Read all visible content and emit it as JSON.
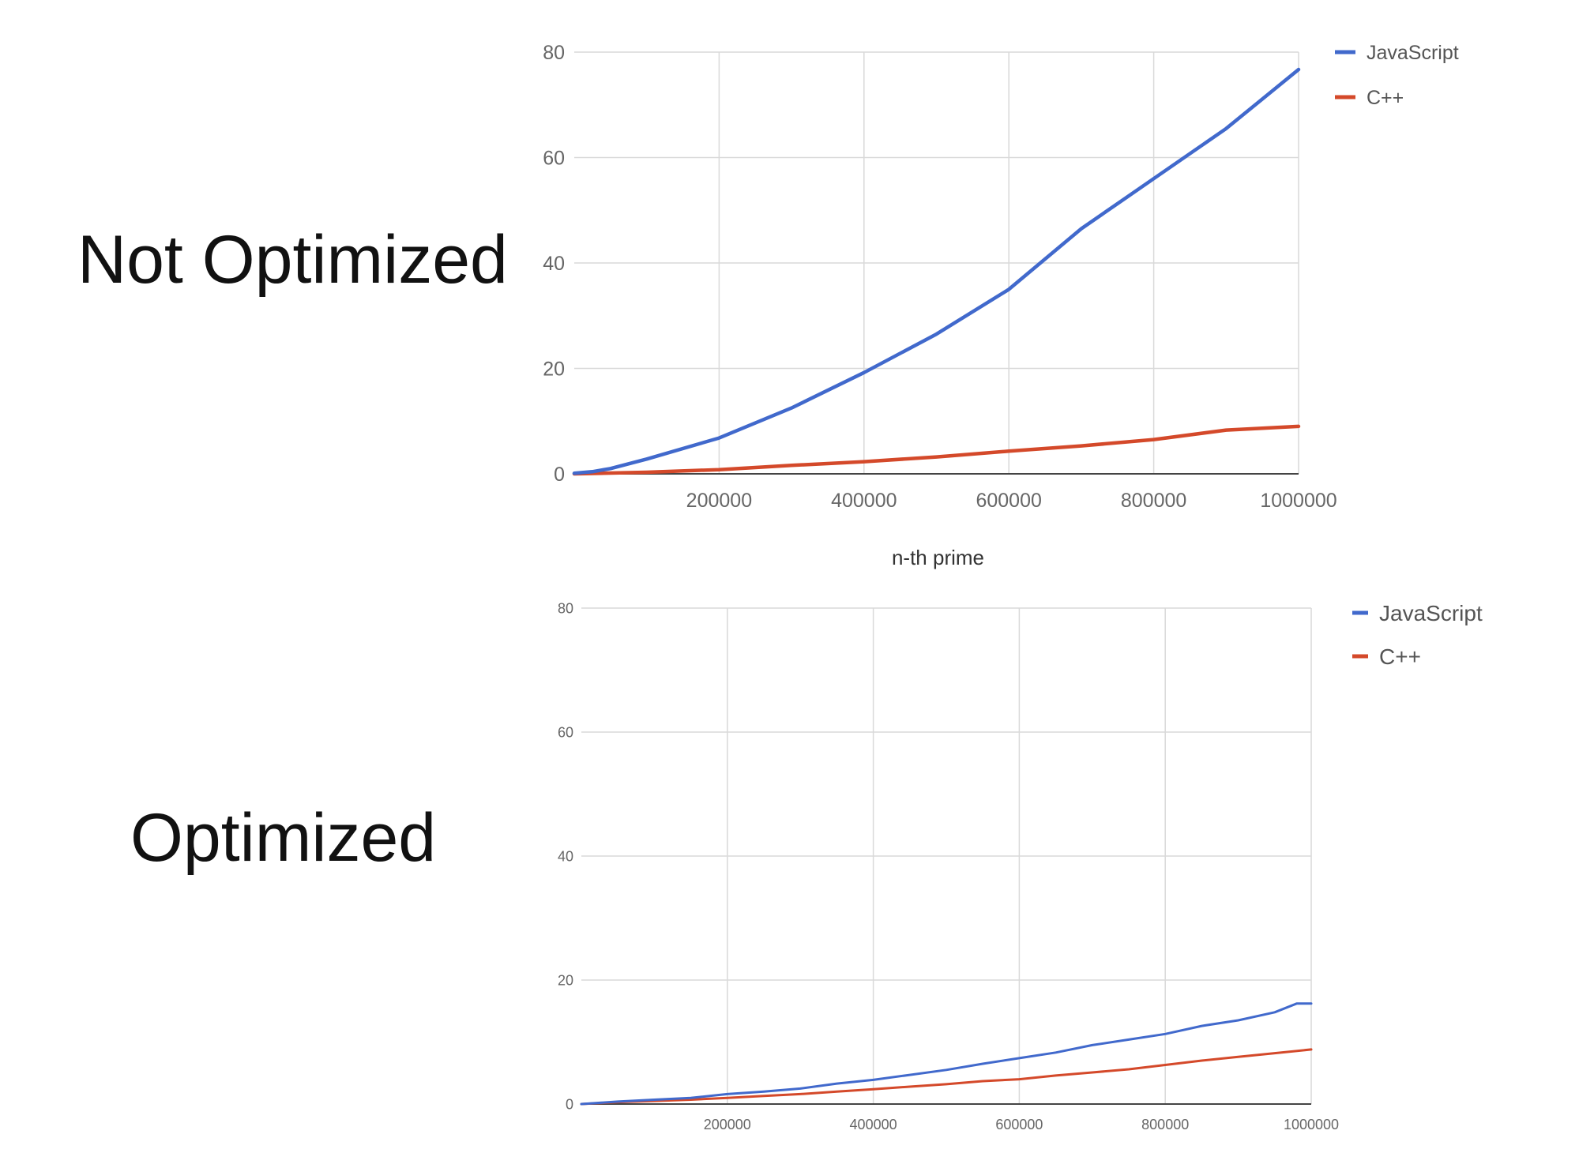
{
  "labels": {
    "top": "Not Optimized",
    "bottom": "Optimized"
  },
  "colors": {
    "javascript": "#4169cc",
    "cpp": "#d4492a",
    "grid": "#d9d9d9",
    "axis": "#444444"
  },
  "chart_data": [
    {
      "type": "line",
      "xlabel": "n-th prime",
      "ylabel": "",
      "xlim": [
        0,
        1000000
      ],
      "ylim": [
        0,
        80
      ],
      "x_ticks": [
        "200000",
        "400000",
        "600000",
        "800000",
        "1000000"
      ],
      "y_ticks": [
        "0",
        "20",
        "40",
        "60",
        "80"
      ],
      "grid": true,
      "legend_position": "top-right",
      "series": [
        {
          "name": "JavaScript",
          "x": [
            0,
            25000,
            50000,
            100000,
            200000,
            300000,
            400000,
            500000,
            600000,
            700000,
            800000,
            900000,
            1000000
          ],
          "values": [
            0.1,
            0.4,
            1.0,
            2.8,
            6.8,
            12.5,
            19.2,
            26.5,
            35.0,
            46.5,
            56.0,
            65.5,
            76.7
          ]
        },
        {
          "name": "C++",
          "x": [
            0,
            100000,
            200000,
            300000,
            400000,
            500000,
            600000,
            700000,
            800000,
            900000,
            1000000
          ],
          "values": [
            0.0,
            0.3,
            0.8,
            1.6,
            2.3,
            3.2,
            4.3,
            5.3,
            6.5,
            8.3,
            9.0
          ]
        }
      ]
    },
    {
      "type": "line",
      "xlabel": "",
      "ylabel": "",
      "xlim": [
        0,
        1000000
      ],
      "ylim": [
        0,
        80
      ],
      "x_ticks": [
        "200000",
        "400000",
        "600000",
        "800000",
        "1000000"
      ],
      "y_ticks": [
        "0",
        "20",
        "40",
        "60",
        "80"
      ],
      "grid": true,
      "legend_position": "top-right",
      "series": [
        {
          "name": "JavaScript",
          "x": [
            0,
            50000,
            100000,
            150000,
            200000,
            250000,
            300000,
            350000,
            400000,
            450000,
            500000,
            550000,
            600000,
            650000,
            700000,
            750000,
            800000,
            850000,
            900000,
            950000,
            980000,
            1000000
          ],
          "values": [
            0.0,
            0.4,
            0.7,
            1.0,
            1.6,
            2.0,
            2.5,
            3.3,
            3.9,
            4.7,
            5.5,
            6.5,
            7.4,
            8.3,
            9.5,
            10.4,
            11.3,
            12.6,
            13.5,
            14.8,
            16.2,
            16.2
          ]
        },
        {
          "name": "C++",
          "x": [
            0,
            50000,
            100000,
            150000,
            200000,
            250000,
            300000,
            350000,
            400000,
            450000,
            500000,
            550000,
            600000,
            650000,
            700000,
            750000,
            800000,
            850000,
            900000,
            950000,
            1000000
          ],
          "values": [
            0.0,
            0.3,
            0.5,
            0.7,
            1.0,
            1.3,
            1.6,
            2.0,
            2.4,
            2.8,
            3.2,
            3.7,
            4.0,
            4.6,
            5.1,
            5.6,
            6.3,
            7.0,
            7.6,
            8.2,
            8.8
          ]
        }
      ]
    }
  ]
}
